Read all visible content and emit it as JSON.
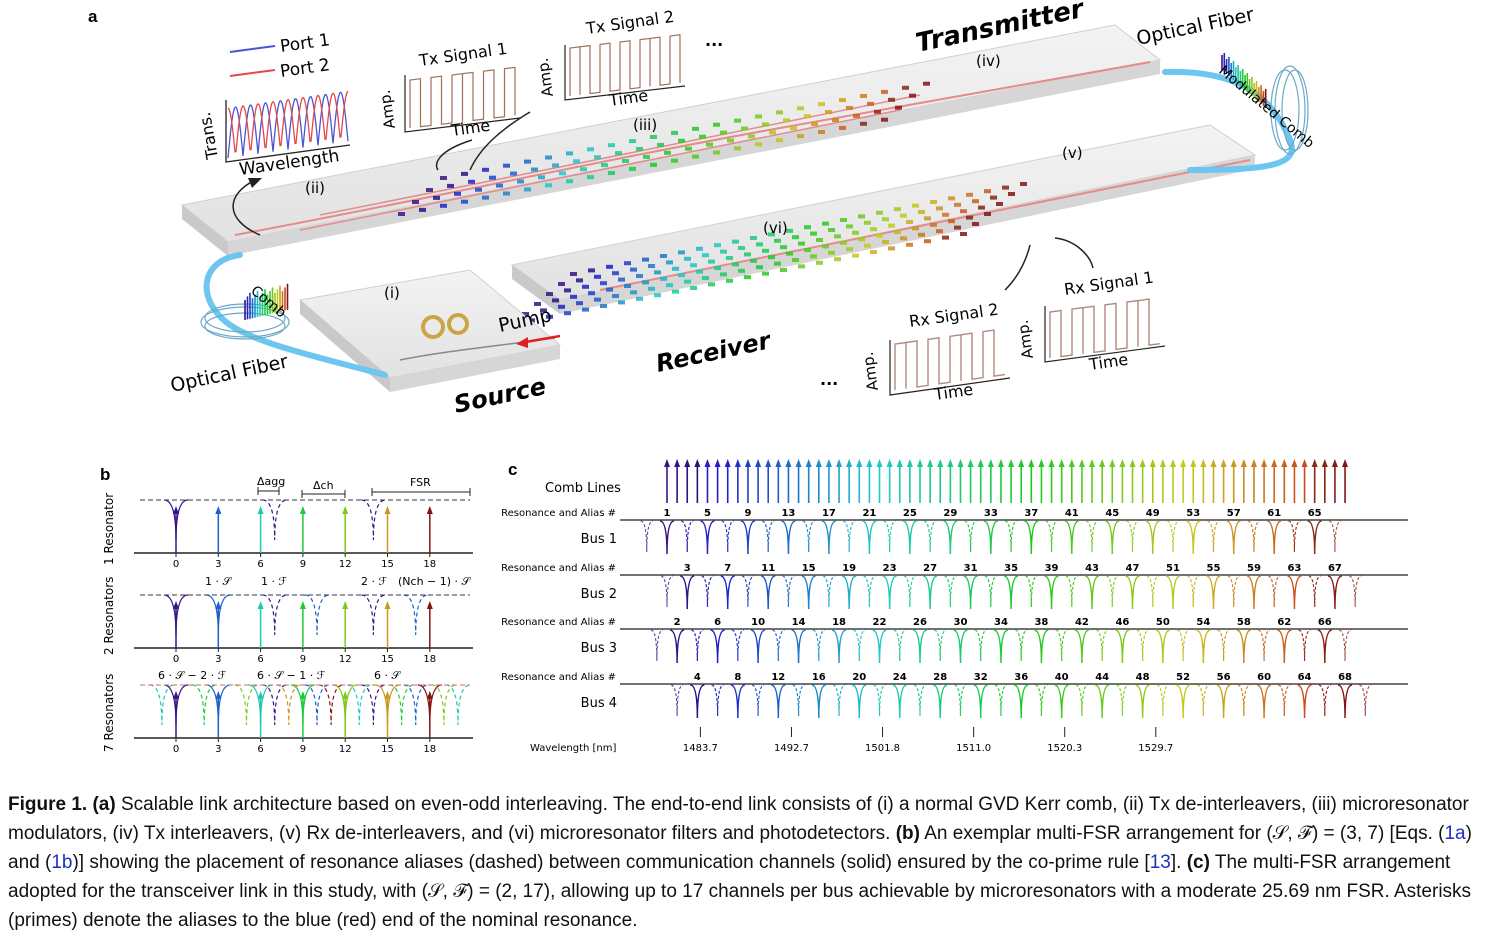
{
  "panel_a": {
    "letter": "a",
    "transmitter": "Transmitter",
    "receiver": "Receiver",
    "source": "Source",
    "optical_fiber_top": "Optical Fiber",
    "optical_fiber_bottom": "Optical Fiber",
    "modulated_comb": "Modulated Comb",
    "comb": "Comb",
    "pump": "Pump",
    "stages": [
      "(i)",
      "(ii)",
      "(iii)",
      "(iv)",
      "(v)",
      "(vi)"
    ],
    "port1": "Port 1",
    "port2": "Port 2",
    "trans": "Trans.",
    "wavelength": "Wavelength",
    "tx_signal_1": "Tx Signal 1",
    "tx_signal_2": "Tx Signal 2",
    "rx_signal_1": "Rx Signal 1",
    "rx_signal_2": "Rx Signal 2",
    "amp": "Amp.",
    "time": "Time",
    "ellipsis": "..."
  },
  "panel_b": {
    "letter": "b",
    "rows": [
      "1 Resonator",
      "2 Resonators",
      "7 Resonators"
    ],
    "ticks": [
      "0",
      "3",
      "6",
      "9",
      "12",
      "15",
      "18"
    ],
    "delta_agg": "Δagg",
    "delta_ch": "Δch",
    "fsr": "FSR",
    "annot_row1": [
      "1 · 𝒮",
      "1 · ℱ",
      "2 · ℱ",
      "(Nch − 1) · 𝒮"
    ],
    "annot_row2": [
      "6 · 𝒮 − 2 · ℱ",
      "6 · 𝒮 − 1 · ℱ",
      "6 · 𝒮"
    ]
  },
  "panel_c": {
    "letter": "c",
    "comb_lines": "Comb Lines",
    "res_alias": "Resonance and Alias #",
    "buses": [
      "Bus 1",
      "Bus 2",
      "Bus 3",
      "Bus 4"
    ],
    "wavelength_label": "Wavelength [nm]",
    "wavelength_ticks": [
      "1483.7",
      "1492.7",
      "1501.8",
      "1511.0",
      "1520.3",
      "1529.7"
    ],
    "bus_channels": [
      [
        "1",
        "5",
        "9",
        "13",
        "17",
        "21",
        "25",
        "29",
        "33",
        "37",
        "41",
        "45",
        "49",
        "53",
        "57",
        "61",
        "65"
      ],
      [
        "3",
        "7",
        "11",
        "15",
        "19",
        "23",
        "27",
        "31",
        "35",
        "39",
        "43",
        "47",
        "51",
        "55",
        "59",
        "63",
        "67"
      ],
      [
        "2",
        "6",
        "10",
        "14",
        "18",
        "22",
        "26",
        "30",
        "34",
        "38",
        "42",
        "46",
        "50",
        "54",
        "58",
        "62",
        "66"
      ],
      [
        "4",
        "8",
        "12",
        "16",
        "20",
        "24",
        "28",
        "32",
        "36",
        "40",
        "44",
        "48",
        "52",
        "56",
        "60",
        "64",
        "68"
      ]
    ]
  },
  "caption": {
    "figure_label": "Figure 1.",
    "a_label": "(a)",
    "a_text": "Scalable link architecture based on even-odd interleaving. The end-to-end link consists of (i) a normal GVD Kerr comb, (ii) Tx de-interleavers, (iii) microresonator modulators, (iv) Tx interleavers, (v) Rx de-interleavers, and (vi) microresonator filters and photodetectors.",
    "b_label": "(b)",
    "b_text_1": "An exemplar multi-FSR arrangement for (𝒮, ℱ) = (3, 7) [Eqs. (",
    "b_ref_1": "1a",
    "b_text_2": ") and (",
    "b_ref_2": "1b",
    "b_text_3": ")] showing the placement of resonance aliases (dashed) between communication channels (solid) ensured by the co-prime rule [",
    "b_ref_3": "13",
    "b_text_4": "].",
    "c_label": "(c)",
    "c_text": "The multi-FSR arrangement adopted for the transceiver link in this study, with (𝒮, ℱ) = (2, 17), allowing up to 17 channels per bus achievable by microresonators with a moderate 25.69 nm FSR. Asterisks (primes) denote the aliases to the blue (red) end of the nominal resonance."
  }
}
